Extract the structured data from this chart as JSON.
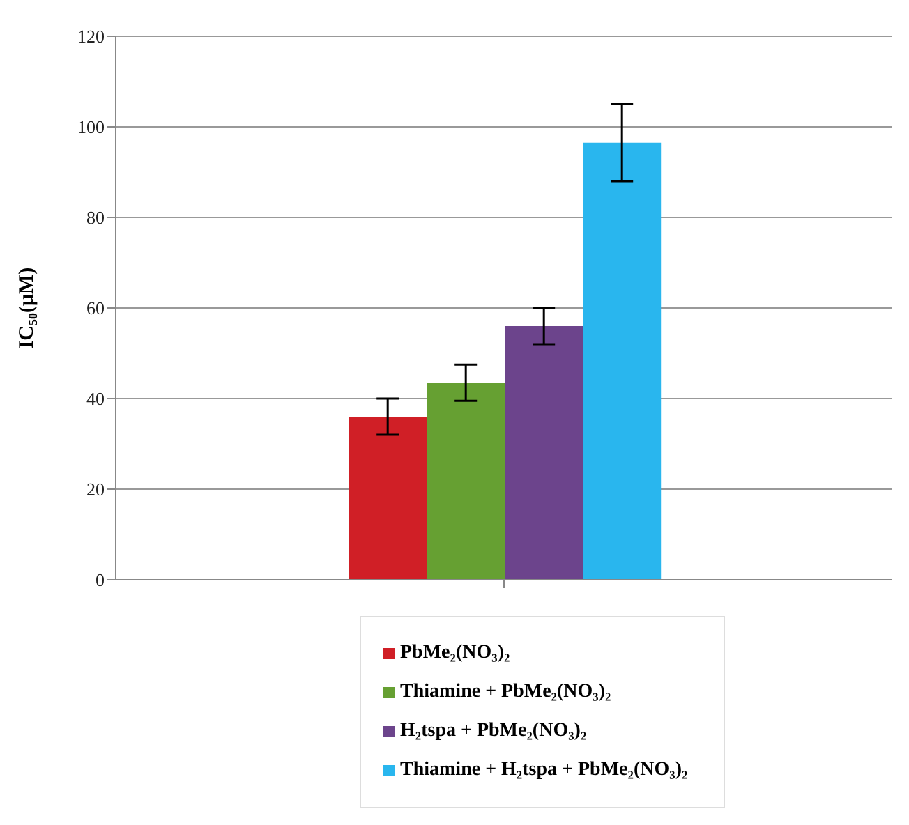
{
  "chart_data": {
    "type": "bar",
    "ylabel": "IC₅₀(μM)",
    "categories": [
      null
    ],
    "series": [
      {
        "name": "PbMe₂(NO₃)₂",
        "color": "#d01f26",
        "values": [
          36
        ],
        "errors": [
          4
        ]
      },
      {
        "name": "Thiamine + PbMe₂(NO₃)₂",
        "color": "#66a032",
        "values": [
          43.5
        ],
        "errors": [
          4
        ]
      },
      {
        "name": "H₂tspa + PbMe₂(NO₃)₂",
        "color": "#6c448c",
        "values": [
          56
        ],
        "errors": [
          4
        ]
      },
      {
        "name": "Thiamine + H₂tspa + PbMe₂(NO₃)₂",
        "color": "#29b6ee",
        "values": [
          96.5
        ],
        "errors": [
          8.5
        ]
      }
    ],
    "ylim": [
      0,
      120
    ],
    "yticks": [
      0,
      20,
      40,
      60,
      80,
      100,
      120
    ],
    "grid": "y",
    "legend": "bottom"
  }
}
